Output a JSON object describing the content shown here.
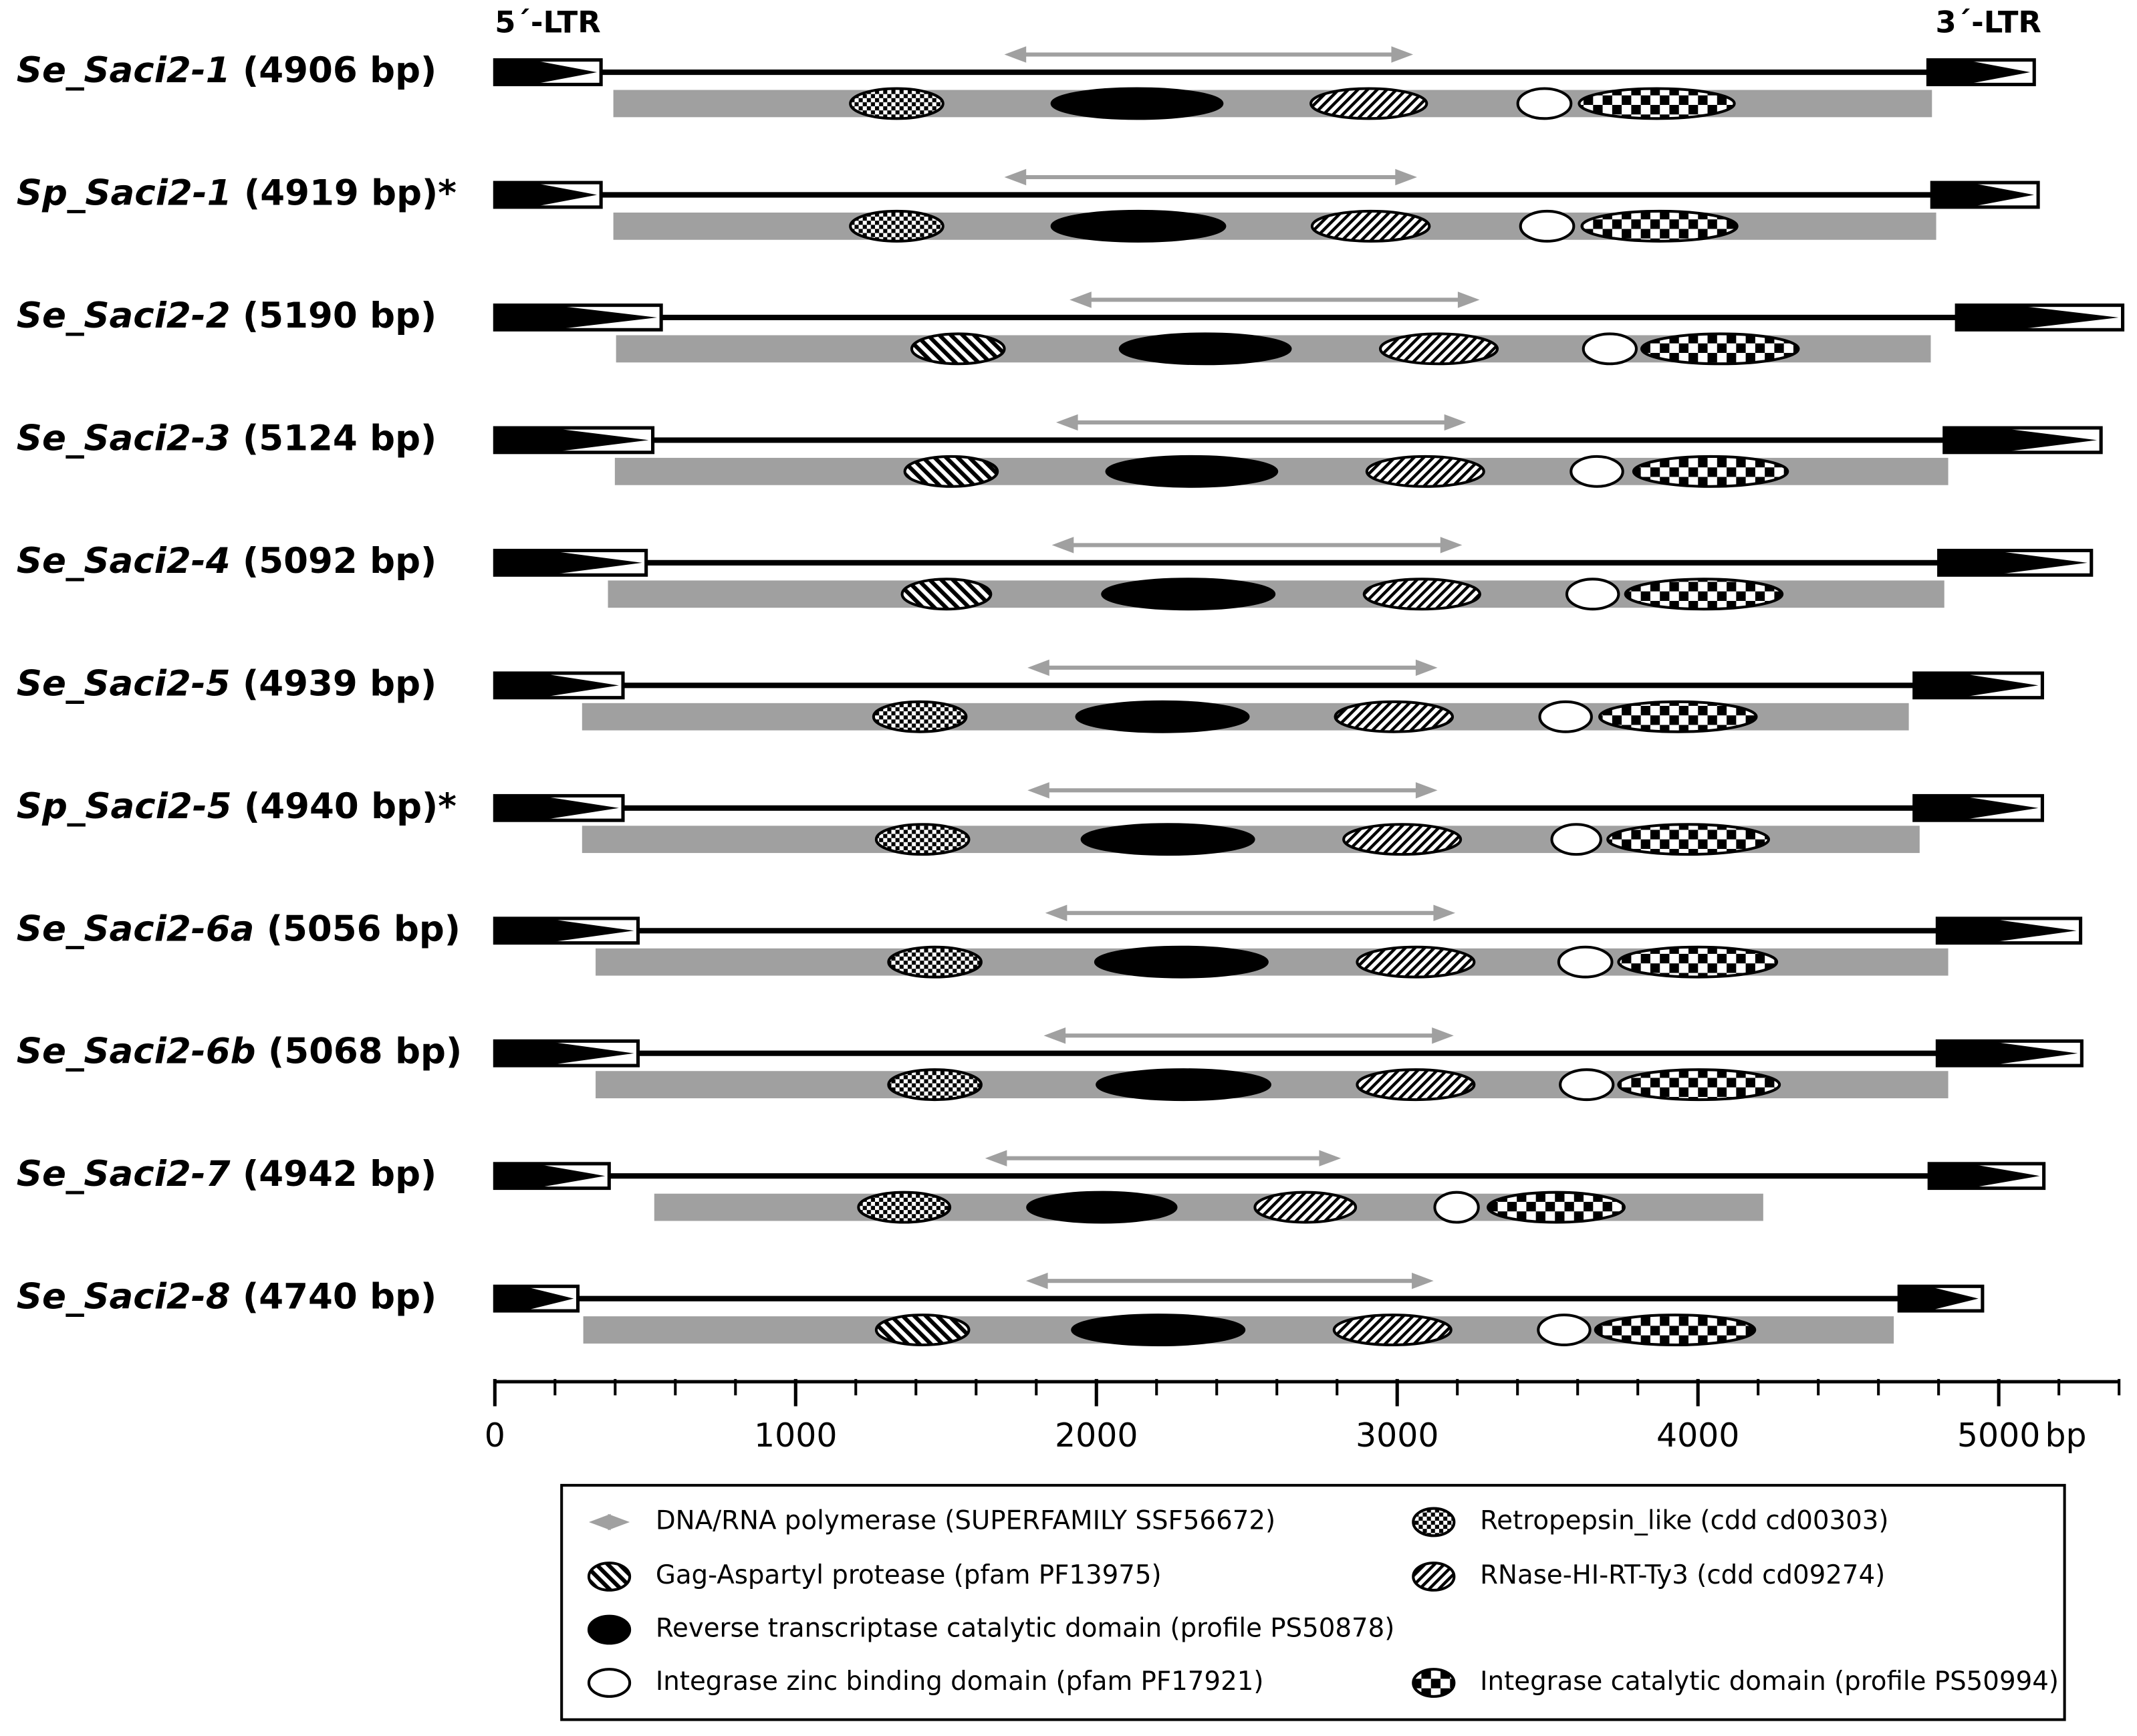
{
  "header": {
    "ltr5": "5´-LTR",
    "ltr3": "3´-LTR"
  },
  "axis": {
    "xlim": [
      0,
      5400
    ],
    "xticks": [
      0,
      1000,
      2000,
      3000,
      4000,
      5000
    ],
    "xminor": [
      200,
      400,
      600,
      800,
      1200,
      1400,
      1600,
      1800,
      2200,
      2400,
      2600,
      2800,
      3200,
      3400,
      3600,
      3800,
      4200,
      4400,
      4600,
      4800,
      5200,
      5400
    ],
    "unit": "bp"
  },
  "legend": [
    {
      "fill": "arrow",
      "label": "DNA/RNA polymerase (SUPERFAMILY SSF56672)",
      "column": "left",
      "row": 0
    },
    {
      "fill": "hatch-wide",
      "label": "Gag-Aspartyl protease (pfam PF13975)",
      "column": "left",
      "row": 1
    },
    {
      "fill": "black",
      "label": "Reverse transcriptase catalytic domain (profile PS50878)",
      "column": "left",
      "row": 2
    },
    {
      "fill": "white",
      "label": "Integrase zinc binding domain (pfam PF17921)",
      "column": "left",
      "row": 3
    },
    {
      "fill": "dots",
      "label": "Retropepsin_like (cdd cd00303)",
      "column": "right",
      "row": 0
    },
    {
      "fill": "hatch-fine",
      "label": "RNase-HI-RT-Ty3 (cdd cd09274)",
      "column": "right",
      "row": 1
    },
    {
      "fill": "checker",
      "label": "Integrase catalytic domain (profile PS50994)",
      "column": "right",
      "row": 3
    }
  ],
  "rows": [
    {
      "id": "Se_Saci2-1",
      "length": "(4906 bp)",
      "ltr5": [
        0,
        353
      ],
      "ltr3": [
        4765,
        5118
      ],
      "orf": [
        394,
        4778
      ],
      "arrow": [
        1694,
        3053
      ],
      "domains": [
        {
          "fill": "dots",
          "start": 1182,
          "end": 1490
        },
        {
          "fill": "black",
          "start": 1852,
          "end": 2418
        },
        {
          "fill": "hatch-fine",
          "start": 2713,
          "end": 3098
        },
        {
          "fill": "white",
          "start": 3401,
          "end": 3578
        },
        {
          "fill": "checker",
          "start": 3605,
          "end": 4121
        }
      ]
    },
    {
      "id": "Sp_Saci2-1",
      "length": "(4919 bp)",
      "note": "*",
      "ltr5": [
        0,
        353
      ],
      "ltr3": [
        4778,
        5131
      ],
      "orf": [
        394,
        4792
      ],
      "arrow": [
        1694,
        3066
      ],
      "domains": [
        {
          "fill": "dots",
          "start": 1182,
          "end": 1490
        },
        {
          "fill": "black",
          "start": 1852,
          "end": 2427
        },
        {
          "fill": "hatch-fine",
          "start": 2717,
          "end": 3107
        },
        {
          "fill": "white",
          "start": 3410,
          "end": 3587
        },
        {
          "fill": "checker",
          "start": 3614,
          "end": 4130
        }
      ]
    },
    {
      "id": "Se_Saci2-2",
      "length": "(5190 bp)",
      "ltr5": [
        0,
        553
      ],
      "ltr3": [
        4860,
        5412
      ],
      "orf": [
        403,
        4774
      ],
      "arrow": [
        1911,
        3274
      ],
      "domains": [
        {
          "fill": "hatch-wide",
          "start": 1386,
          "end": 1694
        },
        {
          "fill": "black",
          "start": 2079,
          "end": 2645
        },
        {
          "fill": "hatch-fine",
          "start": 2944,
          "end": 3333
        },
        {
          "fill": "white",
          "start": 3619,
          "end": 3795
        },
        {
          "fill": "checker",
          "start": 3813,
          "end": 4334
        }
      ]
    },
    {
      "id": "Se_Saci2-3",
      "length": "(5124 bp)",
      "ltr5": [
        0,
        525
      ],
      "ltr3": [
        4819,
        5340
      ],
      "orf": [
        399,
        4832
      ],
      "arrow": [
        1866,
        3229
      ],
      "domains": [
        {
          "fill": "hatch-wide",
          "start": 1363,
          "end": 1671
        },
        {
          "fill": "black",
          "start": 2034,
          "end": 2600
        },
        {
          "fill": "hatch-fine",
          "start": 2899,
          "end": 3288
        },
        {
          "fill": "white",
          "start": 3578,
          "end": 3750
        },
        {
          "fill": "checker",
          "start": 3786,
          "end": 4298
        }
      ]
    },
    {
      "id": "Se_Saci2-4",
      "length": "(5092 bp)",
      "ltr5": [
        0,
        503
      ],
      "ltr3": [
        4801,
        5308
      ],
      "orf": [
        376,
        4819
      ],
      "arrow": [
        1852,
        3216
      ],
      "domains": [
        {
          "fill": "hatch-wide",
          "start": 1354,
          "end": 1649
        },
        {
          "fill": "black",
          "start": 2020,
          "end": 2591
        },
        {
          "fill": "hatch-fine",
          "start": 2890,
          "end": 3275
        },
        {
          "fill": "white",
          "start": 3564,
          "end": 3736
        },
        {
          "fill": "checker",
          "start": 3759,
          "end": 4280
        }
      ]
    },
    {
      "id": "Se_Saci2-5",
      "length": "(4939 bp)",
      "ltr5": [
        0,
        426
      ],
      "ltr3": [
        4719,
        5145
      ],
      "orf": [
        290,
        4701
      ],
      "arrow": [
        1771,
        3134
      ],
      "domains": [
        {
          "fill": "dots",
          "start": 1259,
          "end": 1567
        },
        {
          "fill": "black",
          "start": 1934,
          "end": 2505
        },
        {
          "fill": "hatch-fine",
          "start": 2794,
          "end": 3184
        },
        {
          "fill": "white",
          "start": 3474,
          "end": 3646
        },
        {
          "fill": "checker",
          "start": 3673,
          "end": 4194
        }
      ]
    },
    {
      "id": "Sp_Saci2-5",
      "length": "(4940 bp)",
      "note": "*",
      "ltr5": [
        0,
        426
      ],
      "ltr3": [
        4719,
        5145
      ],
      "orf": [
        290,
        4737
      ],
      "arrow": [
        1771,
        3134
      ],
      "domains": [
        {
          "fill": "dots",
          "start": 1268,
          "end": 1576
        },
        {
          "fill": "black",
          "start": 1952,
          "end": 2523
        },
        {
          "fill": "hatch-fine",
          "start": 2822,
          "end": 3211
        },
        {
          "fill": "white",
          "start": 3514,
          "end": 3677
        },
        {
          "fill": "checker",
          "start": 3700,
          "end": 4235
        }
      ]
    },
    {
      "id": "Se_Saci2-6a",
      "length": "(5056 bp)",
      "ltr5": [
        0,
        476
      ],
      "ltr3": [
        4796,
        5272
      ],
      "orf": [
        335,
        4832
      ],
      "arrow": [
        1830,
        3193
      ],
      "domains": [
        {
          "fill": "dots",
          "start": 1309,
          "end": 1617
        },
        {
          "fill": "black",
          "start": 1997,
          "end": 2568
        },
        {
          "fill": "hatch-fine",
          "start": 2867,
          "end": 3256
        },
        {
          "fill": "white",
          "start": 3537,
          "end": 3714
        },
        {
          "fill": "checker",
          "start": 3736,
          "end": 4262
        }
      ]
    },
    {
      "id": "Se_Saci2-6b",
      "length": "(5068 bp)",
      "ltr5": [
        0,
        476
      ],
      "ltr3": [
        4796,
        5276
      ],
      "orf": [
        335,
        4832
      ],
      "arrow": [
        1825,
        3188
      ],
      "domains": [
        {
          "fill": "dots",
          "start": 1309,
          "end": 1617
        },
        {
          "fill": "black",
          "start": 2002,
          "end": 2577
        },
        {
          "fill": "hatch-fine",
          "start": 2867,
          "end": 3256
        },
        {
          "fill": "white",
          "start": 3542,
          "end": 3718
        },
        {
          "fill": "checker",
          "start": 3736,
          "end": 4271
        }
      ]
    },
    {
      "id": "Se_Saci2-7",
      "length": "(4942 bp)",
      "ltr5": [
        0,
        380
      ],
      "ltr3": [
        4769,
        5150
      ],
      "orf": [
        530,
        4217
      ],
      "arrow": [
        1630,
        2813
      ],
      "domains": [
        {
          "fill": "dots",
          "start": 1209,
          "end": 1513
        },
        {
          "fill": "black",
          "start": 1771,
          "end": 2265
        },
        {
          "fill": "hatch-fine",
          "start": 2527,
          "end": 2862
        },
        {
          "fill": "white",
          "start": 3125,
          "end": 3270
        },
        {
          "fill": "checker",
          "start": 3302,
          "end": 3755
        }
      ]
    },
    {
      "id": "Se_Saci2-8",
      "length": "(4740 bp)",
      "ltr5": [
        0,
        276
      ],
      "ltr3": [
        4669,
        4946
      ],
      "orf": [
        294,
        4651
      ],
      "arrow": [
        1766,
        3121
      ],
      "domains": [
        {
          "fill": "hatch-wide",
          "start": 1268,
          "end": 1576
        },
        {
          "fill": "black",
          "start": 1920,
          "end": 2491
        },
        {
          "fill": "hatch-fine",
          "start": 2790,
          "end": 3179
        },
        {
          "fill": "white",
          "start": 3469,
          "end": 3641
        },
        {
          "fill": "checker",
          "start": 3659,
          "end": 4189
        }
      ]
    }
  ]
}
